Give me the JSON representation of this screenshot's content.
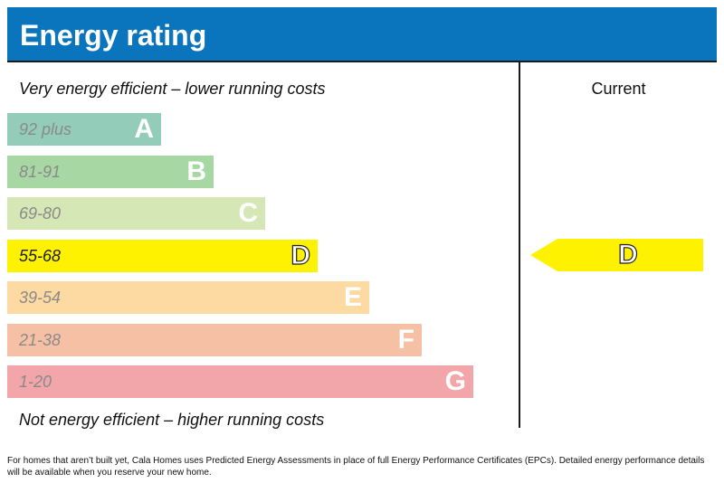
{
  "header": {
    "title": "Energy rating"
  },
  "captions": {
    "top": "Very energy efficient – lower running costs",
    "bottom": "Not energy efficient – higher running costs"
  },
  "chart_data": {
    "type": "bar",
    "title": "Energy rating",
    "column_header": "Current",
    "bands": [
      {
        "letter": "A",
        "range": "92 plus",
        "color": "#93cdb9",
        "text_color": "#8a8a8a"
      },
      {
        "letter": "B",
        "range": "81-91",
        "color": "#a7d7a3",
        "text_color": "#8a8a8a"
      },
      {
        "letter": "C",
        "range": "69-80",
        "color": "#d4e7b4",
        "text_color": "#8a8a8a"
      },
      {
        "letter": "D",
        "range": "55-68",
        "color": "#fff200",
        "text_color": "#1a1a1a"
      },
      {
        "letter": "E",
        "range": "39-54",
        "color": "#fcdaa2",
        "text_color": "#8a8a8a"
      },
      {
        "letter": "F",
        "range": "21-38",
        "color": "#f6c0a5",
        "text_color": "#8a8a8a"
      },
      {
        "letter": "G",
        "range": "1-20",
        "color": "#f2a6a9",
        "text_color": "#8a8a8a"
      }
    ],
    "current_rating": {
      "letter": "D",
      "color": "#fff200"
    }
  },
  "footnote": "For homes that aren’t built yet, Cala Homes uses Predicted Energy Assessments in place of full Energy Performance Certificates (EPCs). Detailed energy performance details will be available when you reserve your new home."
}
